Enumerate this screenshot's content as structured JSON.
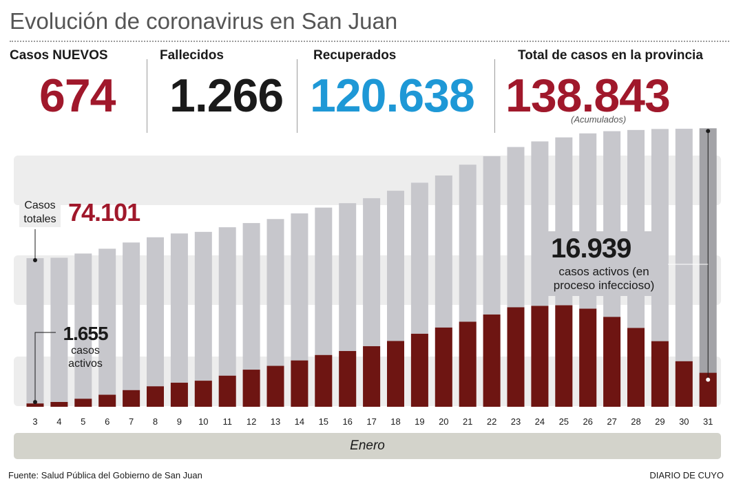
{
  "title": "Evolución de coronavirus en San Juan",
  "stats": {
    "nuevos_label": "Casos NUEVOS",
    "nuevos_value": "674",
    "fallecidos_label": "Fallecidos",
    "fallecidos_value": "1.266",
    "recuperados_label": "Recuperados",
    "recuperados_value": "120.638",
    "total_label": "Total de casos en la provincia",
    "total_value": "138.843",
    "total_note": "(Acumulados)"
  },
  "colors": {
    "red_accent": "#a0182b",
    "blue_accent": "#1e98d6",
    "total_bar": "#c7c7cc",
    "total_bar_last": "#a3a3a7",
    "active_bar": "#6e1512",
    "band": "#ededed"
  },
  "chart_data": {
    "type": "bar",
    "xlabel": "Enero",
    "categories": [
      "3",
      "4",
      "5",
      "6",
      "7",
      "8",
      "9",
      "10",
      "11",
      "12",
      "13",
      "14",
      "15",
      "16",
      "17",
      "18",
      "19",
      "20",
      "21",
      "22",
      "23",
      "24",
      "25",
      "26",
      "27",
      "28",
      "29",
      "30",
      "31"
    ],
    "series": [
      {
        "name": "Casos totales",
        "values": [
          74101,
          74300,
          76400,
          78800,
          81900,
          84500,
          86400,
          87200,
          89500,
          91600,
          93600,
          96400,
          99300,
          101500,
          104000,
          107700,
          111700,
          115300,
          120700,
          124900,
          129500,
          132300,
          134300,
          136300,
          137400,
          138000,
          138500,
          138600,
          138843
        ]
      },
      {
        "name": "Casos activos",
        "values": [
          1655,
          2400,
          4000,
          6000,
          8300,
          10200,
          12000,
          13000,
          15500,
          18500,
          20400,
          23100,
          25800,
          27800,
          30200,
          32800,
          36400,
          39500,
          42400,
          46000,
          49600,
          50300,
          50600,
          48900,
          44800,
          39300,
          32700,
          22700,
          16939
        ]
      }
    ],
    "ylim": [
      0,
      140000
    ],
    "annotations": {
      "first_total_label": "Casos\ntotales",
      "first_total_value": "74.101",
      "first_active_value": "1.655",
      "first_active_label": "casos\nactivos",
      "last_active_value": "16.939",
      "last_active_label": "casos activos (en\nproceso infeccioso)"
    }
  },
  "footer": {
    "source": "Fuente: Salud Pública del Gobierno de San Juan",
    "brand": "DIARIO DE CUYO"
  }
}
